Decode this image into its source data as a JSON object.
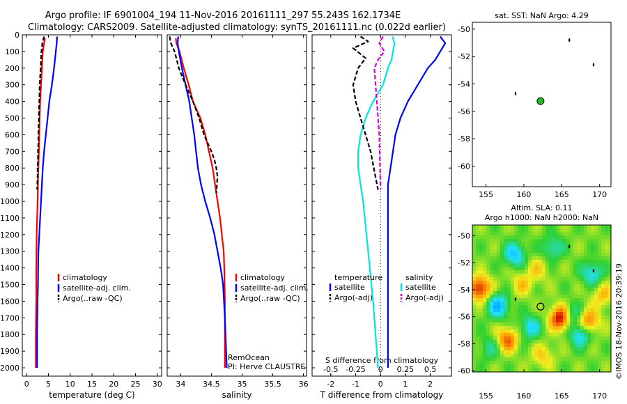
{
  "header": {
    "line1": "Argo profile: IF 6901004_194 11-Nov-2016 20161111_297 55.243S 162.1734E",
    "line2": "Climatology: CARS2009. Satellite-adjusted climatology: synTS_20161111.nc (0.022d earlier)"
  },
  "colors": {
    "climatology": "#ff0000",
    "satellite": "#0000ff",
    "argo": "#000000",
    "sal_sat": "#00e5e5",
    "sal_argo": "#dd00dd"
  },
  "chart_data": [
    {
      "type": "line",
      "name": "temperature-panel",
      "xlabel": "temperature (deg C)",
      "ylim": [
        2050,
        0
      ],
      "xlim": [
        -1,
        31
      ],
      "xticks": [
        0,
        5,
        10,
        15,
        20,
        25,
        30
      ],
      "yticks": [
        0,
        100,
        200,
        300,
        400,
        500,
        600,
        700,
        800,
        900,
        1000,
        1100,
        1200,
        1300,
        1400,
        1500,
        1600,
        1700,
        1800,
        1900,
        2000
      ],
      "legend": [
        "climatology",
        "satellite-adj. clim.",
        "Argo(..raw -QC)"
      ],
      "series": [
        {
          "name": "climatology",
          "color": "#ff0000",
          "x": [
            4.2,
            4.0,
            3.7,
            3.5,
            3.3,
            3.1,
            3.0,
            2.9,
            2.8,
            2.7,
            2.6,
            2.5,
            2.4,
            2.3,
            2.2,
            2.2,
            2.1,
            2.1,
            2.1
          ],
          "y": [
            20,
            50,
            100,
            200,
            300,
            400,
            500,
            600,
            700,
            800,
            900,
            1000,
            1100,
            1200,
            1400,
            1600,
            1800,
            1900,
            2000
          ]
        },
        {
          "name": "satellite-adj. clim.",
          "color": "#0000ff",
          "x": [
            7.0,
            6.9,
            6.7,
            6.3,
            5.8,
            5.2,
            4.8,
            4.4,
            4.0,
            3.7,
            3.5,
            3.3,
            3.1,
            2.9,
            2.7,
            2.6,
            2.5,
            2.4,
            2.4,
            2.4
          ],
          "y": [
            10,
            50,
            100,
            200,
            300,
            400,
            500,
            600,
            700,
            800,
            900,
            1000,
            1100,
            1200,
            1300,
            1500,
            1600,
            1800,
            1900,
            2000
          ]
        },
        {
          "name": "Argo(..raw -QC)",
          "color": "#000000",
          "dashed": true,
          "x": [
            4.0,
            3.6,
            3.4,
            3.2,
            3.0,
            2.9,
            2.8,
            2.7,
            2.7,
            2.6,
            2.6,
            2.5,
            2.5,
            2.4
          ],
          "y": [
            10,
            50,
            100,
            200,
            300,
            400,
            500,
            600,
            650,
            700,
            750,
            800,
            850,
            930
          ]
        }
      ]
    },
    {
      "type": "line",
      "name": "salinity-panel",
      "xlabel": "salinity",
      "ylim": [
        2050,
        0
      ],
      "xlim": [
        33.78,
        36.05
      ],
      "xticks": [
        34,
        34.5,
        35,
        35.5,
        36
      ],
      "xtick_labels": [
        "34",
        "34.5",
        "35",
        "35.5",
        "36"
      ],
      "legend": [
        "climatology",
        "satellite-adj. clim.",
        "Argo(..raw -QC)"
      ],
      "annotation": [
        "RemOcean",
        "PI: Herve CLAUSTRE"
      ],
      "series": [
        {
          "name": "climatology",
          "color": "#ff0000",
          "x": [
            33.92,
            33.93,
            33.98,
            34.05,
            34.13,
            34.2,
            34.32,
            34.4,
            34.46,
            34.52,
            34.56,
            34.6,
            34.64,
            34.67,
            34.7,
            34.71,
            34.72,
            34.72,
            34.72,
            34.72
          ],
          "y": [
            20,
            50,
            100,
            200,
            300,
            400,
            500,
            600,
            700,
            800,
            900,
            1000,
            1100,
            1200,
            1300,
            1400,
            1600,
            1800,
            1900,
            2000
          ]
        },
        {
          "name": "satellite-adj. clim.",
          "color": "#0000ff",
          "x": [
            33.96,
            33.95,
            33.97,
            34.02,
            34.08,
            34.14,
            34.18,
            34.22,
            34.25,
            34.28,
            34.33,
            34.4,
            34.48,
            34.55,
            34.6,
            34.65,
            34.69,
            34.72,
            34.74,
            34.75
          ],
          "y": [
            10,
            50,
            100,
            200,
            300,
            400,
            500,
            600,
            700,
            800,
            900,
            1000,
            1100,
            1200,
            1300,
            1400,
            1500,
            1700,
            1900,
            2000
          ]
        },
        {
          "name": "Argo(..raw -QC)",
          "color": "#000000",
          "dashed": true,
          "x": [
            33.82,
            33.84,
            33.9,
            33.97,
            34.08,
            34.2,
            34.3,
            34.38,
            34.44,
            34.5,
            34.55,
            34.58,
            34.6,
            34.58
          ],
          "y": [
            10,
            50,
            100,
            200,
            300,
            400,
            500,
            600,
            650,
            700,
            750,
            800,
            850,
            950
          ]
        }
      ]
    },
    {
      "type": "line",
      "name": "difference-panel",
      "xlabel": "T difference from climatology",
      "toplabel": "S difference from climatology",
      "ylim": [
        2050,
        0
      ],
      "xlim": [
        -2.75,
        2.85
      ],
      "xticks": [
        -2,
        -1,
        0,
        1,
        2
      ],
      "top_ticks": [
        -0.5,
        -0.25,
        0,
        0.25,
        0.5
      ],
      "top_tick_labels": [
        "-0.5",
        "-0.25",
        "0",
        "0.25",
        "0.5"
      ],
      "legend_temperature_title": "temperature",
      "legend_salinity_title": "salinity",
      "legend_temperature": [
        "satellite",
        "Argo(-adj)"
      ],
      "legend_salinity": [
        "satellite",
        "Argo(-adj)"
      ],
      "series": [
        {
          "name": "T satellite",
          "color": "#0000ff",
          "x": [
            2.4,
            2.6,
            2.4,
            2.2,
            1.9,
            1.5,
            1.1,
            0.8,
            0.6,
            0.5,
            0.4,
            0.3,
            0.3,
            0.3,
            0.3,
            0.3,
            0.3,
            0.3
          ],
          "y": [
            10,
            50,
            100,
            150,
            200,
            300,
            400,
            500,
            600,
            700,
            800,
            900,
            1000,
            1200,
            1500,
            1700,
            1900,
            2000
          ]
        },
        {
          "name": "S satellite",
          "color": "#00e5e5",
          "x": [
            0.48,
            0.56,
            0.5,
            0.44,
            0.3,
            0.1,
            -0.3,
            -0.6,
            -0.8,
            -0.9,
            -0.9,
            -0.8,
            -0.7,
            -0.5,
            -0.3,
            -0.1
          ],
          "y": [
            10,
            50,
            100,
            150,
            200,
            300,
            400,
            500,
            600,
            700,
            800,
            900,
            1000,
            1300,
            1600,
            2000
          ]
        },
        {
          "name": "T Argo(-adj)",
          "color": "#000000",
          "dashed": true,
          "x": [
            -0.8,
            -0.5,
            -1.1,
            -0.6,
            -0.9,
            -1.1,
            -1.0,
            -0.8,
            -0.6,
            -0.4,
            -0.1
          ],
          "y": [
            10,
            40,
            80,
            140,
            200,
            300,
            400,
            500,
            600,
            700,
            930
          ]
        },
        {
          "name": "S Argo(-adj)",
          "color": "#dd00dd",
          "dashed": true,
          "x": [
            0.1,
            -0.05,
            0.15,
            -0.1,
            -0.25,
            -0.15,
            -0.05,
            0.0
          ],
          "y": [
            10,
            50,
            100,
            150,
            200,
            400,
            600,
            930
          ]
        }
      ]
    },
    {
      "type": "scatter",
      "name": "sst-map",
      "title": "sat. SST: NaN Argo: 4.29",
      "xlim": [
        153.2,
        171.5
      ],
      "ylim": [
        -61.5,
        -49.5
      ],
      "xticks": [
        155,
        160,
        165,
        170
      ],
      "yticks": [
        -50,
        -52,
        -54,
        -56,
        -58,
        -60
      ],
      "points": [
        {
          "lon": 162.2,
          "lat": -55.25,
          "marker": "circle-filled",
          "color": "#22bb22"
        },
        {
          "lon": 166.0,
          "lat": -50.8,
          "marker": "dot"
        },
        {
          "lon": 169.2,
          "lat": -52.6,
          "marker": "dot"
        },
        {
          "lon": 158.9,
          "lat": -54.7,
          "marker": "dot"
        }
      ]
    },
    {
      "type": "heatmap",
      "name": "sla-map",
      "title_line1": "Altim. SLA: 0.11",
      "title_line2": "Argo h1000: NaN h2000: NaN",
      "xlim": [
        153.2,
        171.5
      ],
      "ylim": [
        -60.1,
        -49.2
      ],
      "xticks": [
        155,
        160,
        165,
        170
      ],
      "yticks": [
        -50,
        -52,
        -54,
        -56,
        -58,
        -60
      ],
      "colormap": [
        "#0000b0",
        "#00a0ff",
        "#20e0ff",
        "#30d030",
        "#f0f020",
        "#ff9000",
        "#d00000",
        "#700000"
      ],
      "blobs": [
        {
          "lon": 154.2,
          "lat": -53.9,
          "v": 0.9
        },
        {
          "lon": 156.6,
          "lat": -55.2,
          "v": -0.7
        },
        {
          "lon": 158.8,
          "lat": -51.4,
          "v": -0.6
        },
        {
          "lon": 157.8,
          "lat": -57.7,
          "v": 0.7
        },
        {
          "lon": 160.8,
          "lat": -56.8,
          "v": -0.5
        },
        {
          "lon": 161.8,
          "lat": -52.5,
          "v": 0.3
        },
        {
          "lon": 164.9,
          "lat": -56.1,
          "v": 1.1
        },
        {
          "lon": 167.5,
          "lat": -57.3,
          "v": -0.6
        },
        {
          "lon": 166.2,
          "lat": -55.9,
          "v": -0.5
        },
        {
          "lon": 169.0,
          "lat": -52.8,
          "v": -0.5
        },
        {
          "lon": 163.8,
          "lat": -50.9,
          "v": -0.4
        },
        {
          "lon": 155.5,
          "lat": -58.3,
          "v": -0.3
        },
        {
          "lon": 162.5,
          "lat": -58.9,
          "v": 0.35
        },
        {
          "lon": 168.5,
          "lat": -56.4,
          "v": 0.7
        },
        {
          "lon": 170.4,
          "lat": -54.4,
          "v": 0.4
        },
        {
          "lon": 159.7,
          "lat": -53.6,
          "v": 0.35
        }
      ],
      "points": [
        {
          "lon": 162.2,
          "lat": -55.25,
          "marker": "circle-open"
        },
        {
          "lon": 166.0,
          "lat": -50.8,
          "marker": "dot"
        },
        {
          "lon": 169.2,
          "lat": -52.6,
          "marker": "dot"
        },
        {
          "lon": 158.9,
          "lat": -54.7,
          "marker": "dot"
        }
      ]
    }
  ],
  "footer": {
    "credit": "©IMOS 18-Nov-2016 20:39:19"
  }
}
